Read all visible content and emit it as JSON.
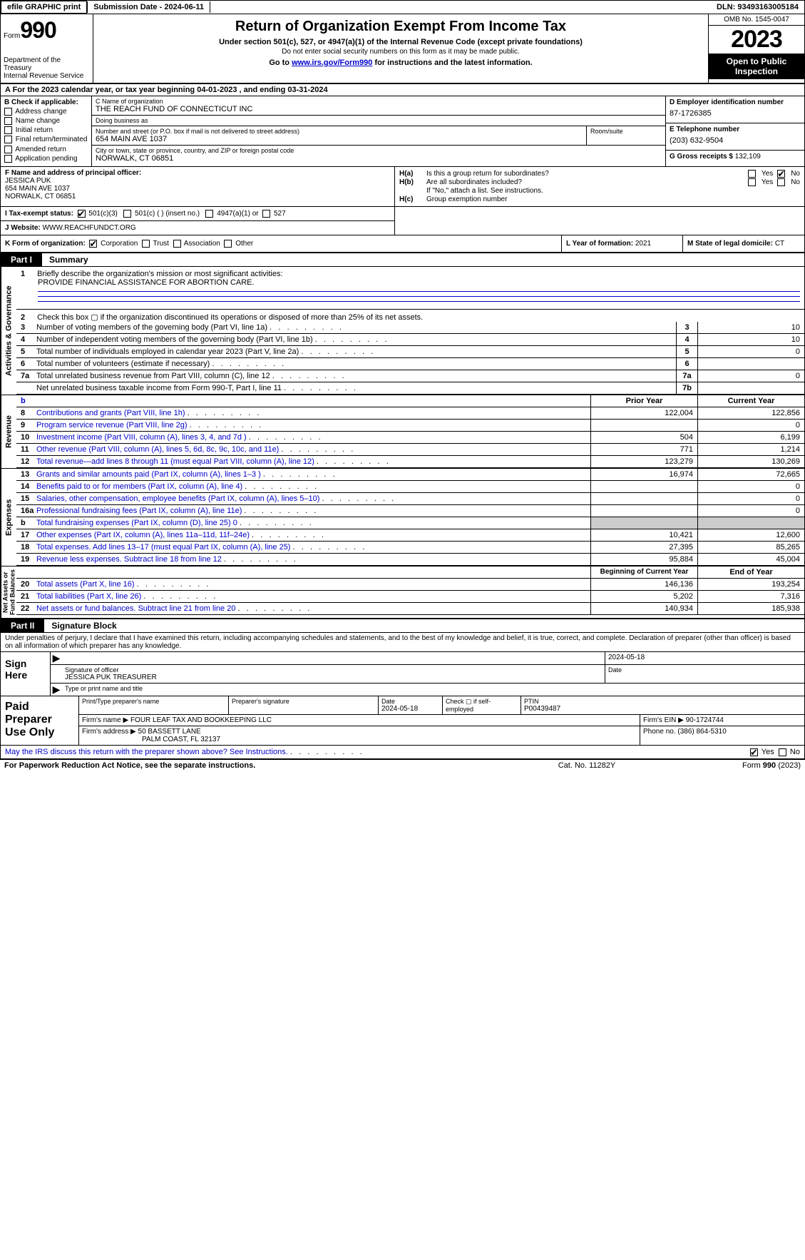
{
  "topbar": {
    "efile": "efile GRAPHIC print",
    "submission_label": "Submission Date - ",
    "submission_date": "2024-06-11",
    "dln_label": "DLN: ",
    "dln": "93493163005184"
  },
  "header": {
    "form_label": "Form",
    "form_num": "990",
    "dept": "Department of the Treasury\nInternal Revenue Service",
    "title": "Return of Organization Exempt From Income Tax",
    "subtitle": "Under section 501(c), 527, or 4947(a)(1) of the Internal Revenue Code (except private foundations)",
    "note": "Do not enter social security numbers on this form as it may be made public.",
    "goto_prefix": "Go to ",
    "goto_link": "www.irs.gov/Form990",
    "goto_suffix": " for instructions and the latest information.",
    "omb": "OMB No. 1545-0047",
    "year": "2023",
    "open": "Open to Public\nInspection"
  },
  "period": {
    "text_a": "A For the 2023 calendar year, or tax year beginning ",
    "begin": "04-01-2023",
    "text_mid": "   , and ending ",
    "end": "03-31-2024"
  },
  "boxB": {
    "label": "B Check if applicable:",
    "items": [
      "Address change",
      "Name change",
      "Initial return",
      "Final return/terminated",
      "Amended return",
      "Application pending"
    ]
  },
  "boxC": {
    "name_label": "C Name of organization",
    "name": "THE REACH FUND OF CONNECTICUT INC",
    "dba_label": "Doing business as",
    "dba": "",
    "street_label": "Number and street (or P.O. box if mail is not delivered to street address)",
    "street": "654 MAIN AVE 1037",
    "room_label": "Room/suite",
    "room": "",
    "city_label": "City or town, state or province, country, and ZIP or foreign postal code",
    "city": "NORWALK, CT  06851"
  },
  "boxD": {
    "label": "D Employer identification number",
    "ein": "87-1726385"
  },
  "boxE": {
    "label": "E Telephone number",
    "phone": "(203) 632-9504"
  },
  "boxG": {
    "label": "G Gross receipts $ ",
    "val": "132,109"
  },
  "boxF": {
    "label": "F  Name and address of principal officer:",
    "name": "JESSICA PUK",
    "addr1": "654 MAIN AVE 1037",
    "addr2": "NORWALK, CT  06851"
  },
  "boxH": {
    "a_label": "H(a)",
    "a_text": "Is this a group return for subordinates?",
    "a_yes": false,
    "a_no": true,
    "b_label": "H(b)",
    "b_text": "Are all subordinates included?",
    "b_yes": false,
    "b_no": false,
    "b_note": "If \"No,\" attach a list. See instructions.",
    "c_label": "H(c)",
    "c_text": "Group exemption number "
  },
  "boxI": {
    "label": "I   Tax-exempt status:",
    "c3": true,
    "c_other": false,
    "c_insert": "501(c) (  ) (insert no.)",
    "a4947": false,
    "a4947_label": "4947(a)(1) or",
    "s527": false,
    "s527_label": "527"
  },
  "boxJ": {
    "label": "J   Website: ",
    "url": "WWW.REACHFUNDCT.ORG"
  },
  "boxK": {
    "label": "K Form of organization:",
    "corp": true,
    "trust": false,
    "assoc": false,
    "other": false,
    "l_label": "L Year of formation: ",
    "l_val": "2021",
    "m_label": "M State of legal domicile: ",
    "m_val": "CT"
  },
  "part1": {
    "tag": "Part I",
    "title": "Summary"
  },
  "part2": {
    "tag": "Part II",
    "title": "Signature Block"
  },
  "mission": {
    "num": "1",
    "label": "Briefly describe the organization's mission or most significant activities:",
    "text": "PROVIDE FINANCIAL ASSISTANCE FOR ABORTION CARE."
  },
  "line2": {
    "num": "2",
    "text": "Check this box  ▢  if the organization discontinued its operations or disposed of more than 25% of its net assets."
  },
  "gov_lines": [
    {
      "num": "3",
      "desc": "Number of voting members of the governing body (Part VI, line 1a)",
      "box": "3",
      "val": "10"
    },
    {
      "num": "4",
      "desc": "Number of independent voting members of the governing body (Part VI, line 1b)",
      "box": "4",
      "val": "10"
    },
    {
      "num": "5",
      "desc": "Total number of individuals employed in calendar year 2023 (Part V, line 2a)",
      "box": "5",
      "val": "0"
    },
    {
      "num": "6",
      "desc": "Total number of volunteers (estimate if necessary)",
      "box": "6",
      "val": ""
    },
    {
      "num": "7a",
      "desc": "Total unrelated business revenue from Part VIII, column (C), line 12",
      "box": "7a",
      "val": "0"
    },
    {
      "num": "",
      "desc": "Net unrelated business taxable income from Form 990-T, Part I, line 11",
      "box": "7b",
      "val": ""
    }
  ],
  "col_hdr1": {
    "prior": "Prior Year",
    "curr": "Current Year"
  },
  "rev_lines": [
    {
      "num": "8",
      "desc": "Contributions and grants (Part VIII, line 1h)",
      "prior": "122,004",
      "curr": "122,856"
    },
    {
      "num": "9",
      "desc": "Program service revenue (Part VIII, line 2g)",
      "prior": "",
      "curr": "0"
    },
    {
      "num": "10",
      "desc": "Investment income (Part VIII, column (A), lines 3, 4, and 7d )",
      "prior": "504",
      "curr": "6,199"
    },
    {
      "num": "11",
      "desc": "Other revenue (Part VIII, column (A), lines 5, 6d, 8c, 9c, 10c, and 11e)",
      "prior": "771",
      "curr": "1,214"
    },
    {
      "num": "12",
      "desc": "Total revenue—add lines 8 through 11 (must equal Part VIII, column (A), line 12)",
      "prior": "123,279",
      "curr": "130,269"
    }
  ],
  "exp_lines": [
    {
      "num": "13",
      "desc": "Grants and similar amounts paid (Part IX, column (A), lines 1–3 )",
      "prior": "16,974",
      "curr": "72,665"
    },
    {
      "num": "14",
      "desc": "Benefits paid to or for members (Part IX, column (A), line 4)",
      "prior": "",
      "curr": "0"
    },
    {
      "num": "15",
      "desc": "Salaries, other compensation, employee benefits (Part IX, column (A), lines 5–10)",
      "prior": "",
      "curr": "0"
    },
    {
      "num": "16a",
      "desc": "Professional fundraising fees (Part IX, column (A), line 11e)",
      "prior": "",
      "curr": "0"
    },
    {
      "num": "b",
      "desc": "Total fundraising expenses (Part IX, column (D), line 25) 0",
      "prior": "SHADE",
      "curr": "SHADE"
    },
    {
      "num": "17",
      "desc": "Other expenses (Part IX, column (A), lines 11a–11d, 11f–24e)",
      "prior": "10,421",
      "curr": "12,600"
    },
    {
      "num": "18",
      "desc": "Total expenses. Add lines 13–17 (must equal Part IX, column (A), line 25)",
      "prior": "27,395",
      "curr": "85,265"
    },
    {
      "num": "19",
      "desc": "Revenue less expenses. Subtract line 18 from line 12",
      "prior": "95,884",
      "curr": "45,004"
    }
  ],
  "col_hdr2": {
    "prior": "Beginning of Current Year",
    "curr": "End of Year"
  },
  "na_lines": [
    {
      "num": "20",
      "desc": "Total assets (Part X, line 16)",
      "prior": "146,136",
      "curr": "193,254"
    },
    {
      "num": "21",
      "desc": "Total liabilities (Part X, line 26)",
      "prior": "5,202",
      "curr": "7,316"
    },
    {
      "num": "22",
      "desc": "Net assets or fund balances. Subtract line 21 from line 20",
      "prior": "140,934",
      "curr": "185,938"
    }
  ],
  "vtabs": {
    "gov": "Activities & Governance",
    "rev": "Revenue",
    "exp": "Expenses",
    "na": "Net Assets or\nFund Balances"
  },
  "sig_decl": "Under penalties of perjury, I declare that I have examined this return, including accompanying schedules and statements, and to the best of my knowledge and belief, it is true, correct, and complete. Declaration of preparer (other than officer) is based on all information of which preparer has any knowledge.",
  "sign": {
    "label": "Sign Here",
    "sig_label": "Signature of officer",
    "officer": "JESSICA PUK TREASURER",
    "type_label": "Type or print name and title",
    "date_label": "Date",
    "date": "2024-05-18"
  },
  "prep": {
    "label": "Paid Preparer Use Only",
    "name_label": "Print/Type preparer's name",
    "sig_label": "Preparer's signature",
    "date_label": "Date",
    "date": "2024-05-18",
    "self_label": "Check ▢ if self-employed",
    "ptin_label": "PTIN",
    "ptin": "P00439487",
    "firm_name_label": "Firm's name   ",
    "firm_name": "FOUR LEAF TAX AND BOOKKEEPING LLC",
    "firm_ein_label": "Firm's EIN  ",
    "firm_ein": "90-1724744",
    "firm_addr_label": "Firm's address ",
    "firm_addr1": "50 BASSETT LANE",
    "firm_addr2": "PALM COAST, FL  32137",
    "phone_label": "Phone no. ",
    "phone": "(386) 864-5310"
  },
  "discuss": {
    "text": "May the IRS discuss this return with the preparer shown above? See Instructions.",
    "yes": true,
    "no": false
  },
  "footer": {
    "left": "For Paperwork Reduction Act Notice, see the separate instructions.",
    "mid": "Cat. No. 11282Y",
    "right_a": "Form ",
    "right_b": "990",
    "right_c": " (2023)"
  }
}
